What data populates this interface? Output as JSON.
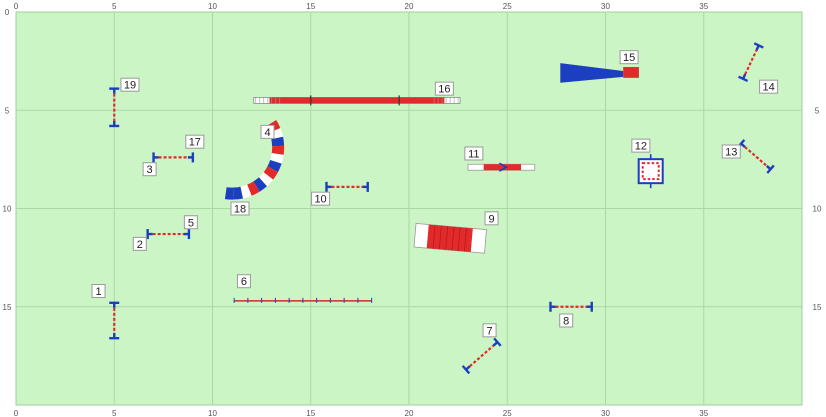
{
  "colors": {
    "field": "#ccf5c6",
    "grid": "#a9d8a2",
    "bar_red": "#e32a2a",
    "bar_blue": "#1b3fbf",
    "rail_red": "#d62828"
  },
  "grid": {
    "x_max": 40,
    "y_max": 20
  },
  "axis": {
    "top_ticks": [
      "0",
      "5",
      "10",
      "15",
      "20",
      "25",
      "30",
      "35"
    ],
    "bottom_ticks": [
      "0",
      "5",
      "10",
      "15",
      "20",
      "25",
      "30",
      "35"
    ],
    "left_ticks": [
      "0",
      "5",
      "10",
      "15"
    ],
    "right_ticks": [
      "5",
      "10",
      "15"
    ]
  },
  "obstacles": [
    {
      "id": "1",
      "type": "jump",
      "x1": 5.0,
      "y1": 14.8,
      "x2": 5.0,
      "y2": 16.6,
      "label": "1",
      "lx": 4.2,
      "ly": 14.2
    },
    {
      "id": "2",
      "type": "jump",
      "x1": 6.7,
      "y1": 11.3,
      "x2": 8.8,
      "y2": 11.3,
      "label": "2",
      "lx": 6.3,
      "ly": 11.8
    },
    {
      "id": "3",
      "type": "jump",
      "x1": 7.0,
      "y1": 7.4,
      "x2": 9.0,
      "y2": 7.4,
      "label": "3",
      "lx": 6.8,
      "ly": 8.0
    },
    {
      "id": "4",
      "type": "curved_tunnel",
      "label": "4",
      "lx": 12.8,
      "ly": 6.1
    },
    {
      "id": "5",
      "type": "label_only",
      "label": "5",
      "lx": 8.9,
      "ly": 10.7
    },
    {
      "id": "6",
      "type": "long_jump",
      "x1": 11.1,
      "y1": 14.7,
      "x2": 18.1,
      "y2": 14.7,
      "label": "6",
      "lx": 11.6,
      "ly": 13.7
    },
    {
      "id": "7",
      "type": "jump",
      "x1": 22.9,
      "y1": 18.2,
      "x2": 24.5,
      "y2": 16.8,
      "label": "7",
      "lx": 24.1,
      "ly": 16.2
    },
    {
      "id": "8",
      "type": "jump",
      "x1": 27.2,
      "y1": 15.0,
      "x2": 29.3,
      "y2": 15.0,
      "label": "8",
      "lx": 28.0,
      "ly": 15.7
    },
    {
      "id": "9",
      "type": "tunnel",
      "label": "9",
      "lx": 24.2,
      "ly": 10.5
    },
    {
      "id": "10",
      "type": "jump",
      "x1": 15.8,
      "y1": 8.9,
      "x2": 17.9,
      "y2": 8.9,
      "label": "10",
      "lx": 15.5,
      "ly": 9.5
    },
    {
      "id": "11",
      "type": "tire_bar",
      "label": "11",
      "lx": 23.3,
      "ly": 7.2
    },
    {
      "id": "12",
      "type": "weave_box",
      "label": "12",
      "lx": 31.8,
      "ly": 6.8
    },
    {
      "id": "13",
      "type": "jump",
      "x1": 36.9,
      "y1": 6.7,
      "x2": 38.4,
      "y2": 8.0,
      "label": "13",
      "lx": 36.4,
      "ly": 7.1
    },
    {
      "id": "14",
      "type": "jump",
      "x1": 37.0,
      "y1": 3.4,
      "x2": 37.8,
      "y2": 1.7,
      "label": "14",
      "lx": 38.3,
      "ly": 3.8
    },
    {
      "id": "15",
      "type": "chute",
      "label": "15",
      "lx": 31.2,
      "ly": 2.3
    },
    {
      "id": "16",
      "type": "dog_walk",
      "label": "16",
      "lx": 21.8,
      "ly": 3.9
    },
    {
      "id": "17",
      "type": "label_only",
      "label": "17",
      "lx": 9.1,
      "ly": 6.6
    },
    {
      "id": "18",
      "type": "label_only",
      "label": "18",
      "lx": 11.4,
      "ly": 10.0
    },
    {
      "id": "19",
      "type": "jump",
      "x1": 5.0,
      "y1": 3.9,
      "x2": 5.0,
      "y2": 5.8,
      "label": "19",
      "lx": 5.8,
      "ly": 3.7
    }
  ]
}
